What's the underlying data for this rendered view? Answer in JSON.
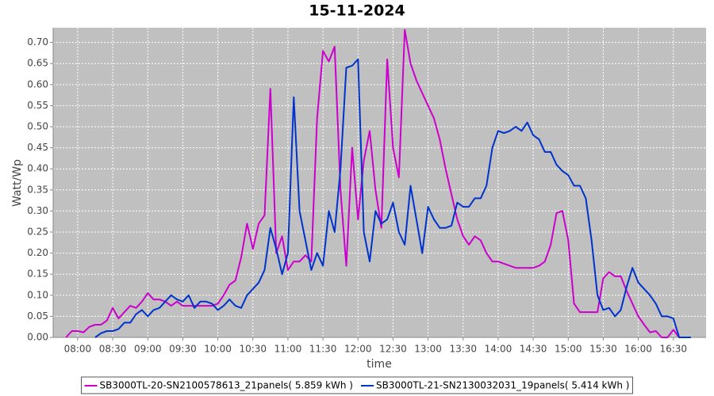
{
  "chart_data": {
    "type": "line",
    "title": "15-11-2024",
    "x_label": "time",
    "y_label": "Watt/Wp",
    "x": [
      "07:45",
      "07:50",
      "07:55",
      "08:00",
      "08:05",
      "08:10",
      "08:15",
      "08:20",
      "08:25",
      "08:30",
      "08:35",
      "08:40",
      "08:45",
      "08:50",
      "08:55",
      "09:00",
      "09:05",
      "09:10",
      "09:15",
      "09:20",
      "09:25",
      "09:30",
      "09:35",
      "09:40",
      "09:45",
      "09:50",
      "09:55",
      "10:00",
      "10:05",
      "10:10",
      "10:15",
      "10:20",
      "10:25",
      "10:30",
      "10:35",
      "10:40",
      "10:45",
      "10:50",
      "10:55",
      "11:00",
      "11:05",
      "11:10",
      "11:15",
      "11:20",
      "11:25",
      "11:30",
      "11:35",
      "11:40",
      "11:45",
      "11:50",
      "11:55",
      "12:00",
      "12:05",
      "12:10",
      "12:15",
      "12:20",
      "12:25",
      "12:30",
      "12:35",
      "12:40",
      "12:45",
      "12:50",
      "12:55",
      "13:00",
      "13:05",
      "13:10",
      "13:15",
      "13:20",
      "13:25",
      "13:30",
      "13:35",
      "13:40",
      "13:45",
      "13:50",
      "13:55",
      "14:00",
      "14:05",
      "14:10",
      "14:15",
      "14:20",
      "14:25",
      "14:30",
      "14:35",
      "14:40",
      "14:45",
      "14:50",
      "14:55",
      "15:00",
      "15:05",
      "15:10",
      "15:15",
      "15:20",
      "15:25",
      "15:30",
      "15:35",
      "15:40",
      "15:45",
      "15:50",
      "15:55",
      "16:00",
      "16:05",
      "16:10",
      "16:15",
      "16:20",
      "16:25",
      "16:30",
      "16:35",
      "16:40",
      "16:45",
      "16:50"
    ],
    "series": [
      {
        "name": "SB3000TL-20-SN2100578613_21panels( 5.859 kWh )",
        "color": "#cc00cc",
        "values": [
          null,
          0.0,
          0.015,
          0.015,
          0.012,
          0.025,
          0.03,
          0.03,
          0.04,
          0.07,
          0.045,
          0.06,
          0.075,
          0.07,
          0.085,
          0.105,
          0.09,
          0.09,
          0.085,
          0.075,
          0.085,
          0.075,
          0.075,
          0.075,
          0.075,
          0.075,
          0.075,
          0.08,
          0.1,
          0.125,
          0.135,
          0.19,
          0.27,
          0.21,
          0.27,
          0.29,
          0.59,
          0.2,
          0.24,
          0.16,
          0.18,
          0.18,
          0.195,
          0.18,
          0.52,
          0.68,
          0.655,
          0.69,
          0.35,
          0.17,
          0.45,
          0.28,
          0.42,
          0.49,
          0.35,
          0.26,
          0.66,
          0.45,
          0.38,
          0.73,
          0.65,
          0.61,
          0.58,
          0.55,
          0.52,
          0.47,
          0.4,
          0.34,
          0.28,
          0.24,
          0.22,
          0.24,
          0.23,
          0.2,
          0.18,
          0.18,
          0.175,
          0.17,
          0.165,
          0.165,
          0.165,
          0.165,
          0.17,
          0.18,
          0.22,
          0.295,
          0.3,
          0.23,
          0.08,
          0.06,
          0.06,
          0.06,
          0.06,
          0.14,
          0.155,
          0.145,
          0.145,
          0.11,
          0.08,
          0.05,
          0.03,
          0.012,
          0.015,
          0.0,
          0.0,
          0.018,
          0.0,
          null,
          null,
          null
        ]
      },
      {
        "name": "SB3000TL-21-SN2130032031_19panels( 5.414 kWh )",
        "color": "#0033cc",
        "values": [
          null,
          null,
          null,
          null,
          null,
          null,
          0.0,
          0.01,
          0.015,
          0.015,
          0.02,
          0.035,
          0.035,
          0.055,
          0.065,
          0.05,
          0.065,
          0.07,
          0.085,
          0.1,
          0.09,
          0.085,
          0.1,
          0.07,
          0.085,
          0.085,
          0.08,
          0.065,
          0.075,
          0.09,
          0.075,
          0.07,
          0.1,
          0.115,
          0.13,
          0.16,
          0.26,
          0.21,
          0.15,
          0.2,
          0.57,
          0.3,
          0.23,
          0.16,
          0.2,
          0.17,
          0.3,
          0.25,
          0.4,
          0.64,
          0.645,
          0.66,
          0.25,
          0.18,
          0.3,
          0.27,
          0.28,
          0.32,
          0.25,
          0.22,
          0.36,
          0.28,
          0.2,
          0.31,
          0.28,
          0.26,
          0.26,
          0.265,
          0.32,
          0.31,
          0.31,
          0.33,
          0.33,
          0.36,
          0.45,
          0.49,
          0.485,
          0.49,
          0.5,
          0.49,
          0.51,
          0.48,
          0.47,
          0.44,
          0.44,
          0.41,
          0.395,
          0.385,
          0.36,
          0.36,
          0.33,
          0.23,
          0.1,
          0.065,
          0.07,
          0.05,
          0.065,
          0.12,
          0.165,
          0.13,
          0.115,
          0.1,
          0.08,
          0.05,
          0.05,
          0.045,
          0.0,
          0.0,
          0.0,
          null
        ]
      }
    ],
    "xlim": [
      "07:39",
      "16:58"
    ],
    "xticks": [
      "08:00",
      "08:30",
      "09:00",
      "09:30",
      "10:00",
      "10:30",
      "11:00",
      "11:30",
      "12:00",
      "12:30",
      "13:00",
      "13:30",
      "14:00",
      "14:30",
      "15:00",
      "15:30",
      "16:00",
      "16:30"
    ],
    "ylim": [
      0,
      0.735
    ],
    "yticks": [
      {
        "value": 0,
        "label": "0.00"
      },
      {
        "value": 0.05,
        "label": "0.05"
      },
      {
        "value": 0.1,
        "label": "0.10"
      },
      {
        "value": 0.15,
        "label": "0.15"
      },
      {
        "value": 0.2,
        "label": "0.20"
      },
      {
        "value": 0.25,
        "label": "0.25"
      },
      {
        "value": 0.3,
        "label": "0.30"
      },
      {
        "value": 0.35,
        "label": "0.35"
      },
      {
        "value": 0.4,
        "label": "0.40"
      },
      {
        "value": 0.45,
        "label": "0.45"
      },
      {
        "value": 0.5,
        "label": "0.50"
      },
      {
        "value": 0.55,
        "label": "0.55"
      },
      {
        "value": 0.6,
        "label": "0.60"
      },
      {
        "value": 0.65,
        "label": "0.65"
      },
      {
        "value": 0.7,
        "label": "0.70"
      }
    ],
    "grid": true,
    "background": "#c0c0c0",
    "legend": "bottom"
  }
}
